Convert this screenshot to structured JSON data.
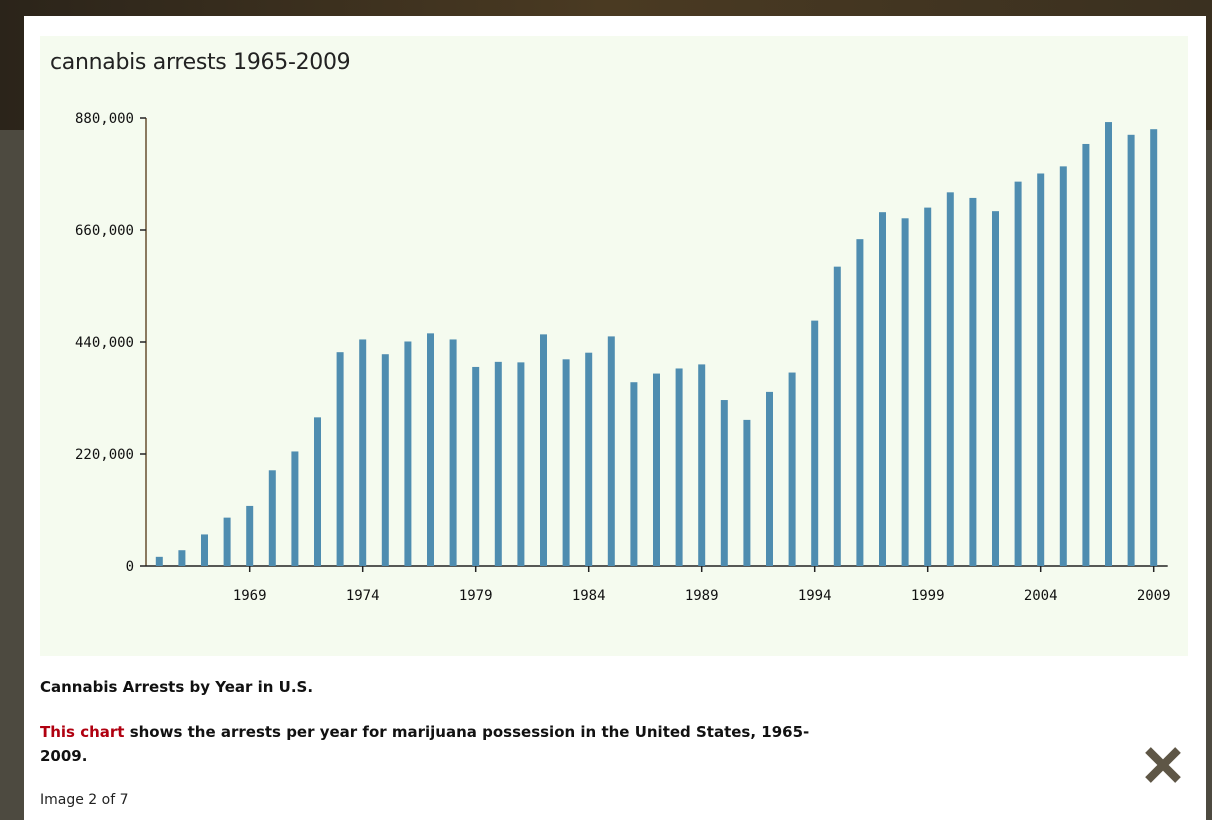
{
  "lightbox": {
    "caption_title": "Cannabis Arrests by Year in U.S.",
    "caption_link": "This chart",
    "caption_text": " shows the arrests per year for marijuana possession in the United States, 1965-2009.",
    "counter": "Image 2 of 7",
    "close_icon": "close-x-icon",
    "close_color": "#5e5646"
  },
  "colors": {
    "bar": "#4f8db0",
    "panel_bg": "#f5fbef",
    "y_axis": "#8a7a60",
    "link": "#b00010"
  },
  "chart_data": {
    "type": "bar",
    "title": "cannabis arrests 1965-2009",
    "xlabel": "",
    "ylabel": "",
    "ylim": [
      0,
      880000
    ],
    "y_ticks": [
      "0",
      "220,000",
      "440,000",
      "660,000",
      "880,000"
    ],
    "x_tick_labels": [
      "1969",
      "1974",
      "1979",
      "1984",
      "1989",
      "1994",
      "1999",
      "2004",
      "2009"
    ],
    "categories": [
      "1965",
      "1966",
      "1967",
      "1968",
      "1969",
      "1970",
      "1971",
      "1972",
      "1973",
      "1974",
      "1975",
      "1976",
      "1977",
      "1978",
      "1979",
      "1980",
      "1981",
      "1982",
      "1983",
      "1984",
      "1985",
      "1986",
      "1987",
      "1988",
      "1989",
      "1990",
      "1991",
      "1992",
      "1993",
      "1994",
      "1995",
      "1996",
      "1997",
      "1998",
      "1999",
      "2000",
      "2001",
      "2002",
      "2003",
      "2004",
      "2005",
      "2006",
      "2007",
      "2008",
      "2009"
    ],
    "values": [
      18000,
      31000,
      62000,
      95000,
      118000,
      188000,
      225000,
      292000,
      420000,
      445000,
      416000,
      441000,
      457000,
      445000,
      391000,
      401000,
      400000,
      455000,
      406000,
      419000,
      451000,
      361000,
      378000,
      388000,
      396000,
      326000,
      287000,
      342000,
      380000,
      482000,
      588000,
      642000,
      695000,
      683000,
      704000,
      734000,
      723000,
      697000,
      755000,
      771000,
      785000,
      829000,
      872000,
      847000,
      858000
    ],
    "grid": false,
    "legend": "none"
  }
}
